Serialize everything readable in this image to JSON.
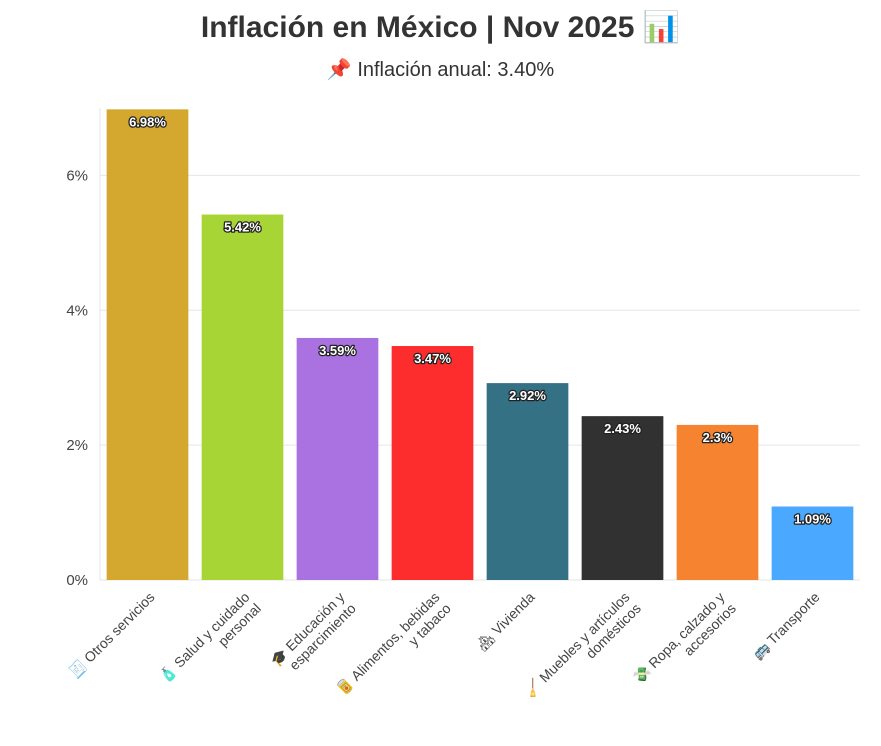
{
  "title": "Inflación en México | Nov 2025 📊",
  "subtitle": "📌 Inflación anual: 3.40%",
  "chart_data": {
    "type": "bar",
    "title": "Inflación en México | Nov 2025",
    "subtitle": "Inflación anual: 3.40%",
    "xlabel": "",
    "ylabel": "",
    "ylim": [
      0,
      7
    ],
    "yticks": [
      0,
      2,
      4,
      6
    ],
    "ytick_labels": [
      "0%",
      "2%",
      "4%",
      "6%"
    ],
    "grid": true,
    "categories": [
      {
        "label": [
          "🧾 Otros servicios"
        ],
        "icon": "receipt-icon"
      },
      {
        "label": [
          "🧴 Salud y cuidado",
          "personal"
        ],
        "icon": "lotion-icon"
      },
      {
        "label": [
          "🎓 Educación y",
          "esparcimiento"
        ],
        "icon": "graduation-cap-icon"
      },
      {
        "label": [
          "🥫 Alimentos, bebidas",
          "y tabaco"
        ],
        "icon": "can-icon"
      },
      {
        "label": [
          "🏘 Vivienda"
        ],
        "icon": "houses-icon"
      },
      {
        "label": [
          "🧹 Muebles y artículos",
          "domésticos"
        ],
        "icon": "broom-icon"
      },
      {
        "label": [
          "💸 Ropa, calzado y",
          "accesorios"
        ],
        "icon": "money-icon"
      },
      {
        "label": [
          "🚌 Transporte"
        ],
        "icon": "bus-icon"
      }
    ],
    "values": [
      6.98,
      5.42,
      3.59,
      3.47,
      2.92,
      2.43,
      2.3,
      1.09
    ],
    "value_labels": [
      "6.98%",
      "5.42%",
      "3.59%",
      "3.47%",
      "2.92%",
      "2.43%",
      "2.3%",
      "1.09%"
    ],
    "colors": [
      "#d4a82e",
      "#a8d536",
      "#a972e0",
      "#fe2d2d",
      "#347185",
      "#313131",
      "#f6832f",
      "#4aa9ff"
    ]
  }
}
